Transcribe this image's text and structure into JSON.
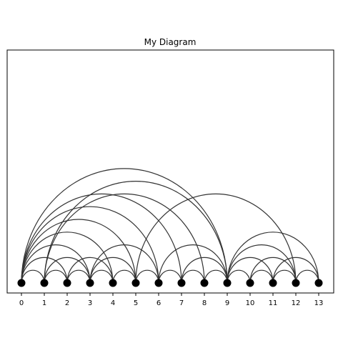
{
  "diagram": {
    "title": "My Diagram",
    "type": "arc-diagram",
    "line_color": "#333333",
    "node_color": "#000000",
    "nodes": [
      "0",
      "1",
      "2",
      "3",
      "4",
      "5",
      "6",
      "7",
      "8",
      "9",
      "10",
      "11",
      "12",
      "13"
    ],
    "edges": [
      [
        0,
        1
      ],
      [
        1,
        2
      ],
      [
        2,
        3
      ],
      [
        3,
        4
      ],
      [
        4,
        5
      ],
      [
        5,
        6
      ],
      [
        6,
        7
      ],
      [
        7,
        8
      ],
      [
        8,
        9
      ],
      [
        9,
        10
      ],
      [
        10,
        11
      ],
      [
        11,
        12
      ],
      [
        12,
        13
      ],
      [
        0,
        2
      ],
      [
        1,
        3
      ],
      [
        3,
        5
      ],
      [
        7,
        9
      ],
      [
        9,
        11
      ],
      [
        10,
        12
      ],
      [
        11,
        13
      ],
      [
        0,
        3
      ],
      [
        2,
        4
      ],
      [
        3,
        6
      ],
      [
        6,
        9
      ],
      [
        9,
        12
      ],
      [
        0,
        4
      ],
      [
        9,
        13
      ],
      [
        0,
        5
      ],
      [
        0,
        6
      ],
      [
        0,
        7
      ],
      [
        1,
        8
      ],
      [
        0,
        9
      ],
      [
        1,
        9
      ],
      [
        5,
        12
      ]
    ]
  }
}
